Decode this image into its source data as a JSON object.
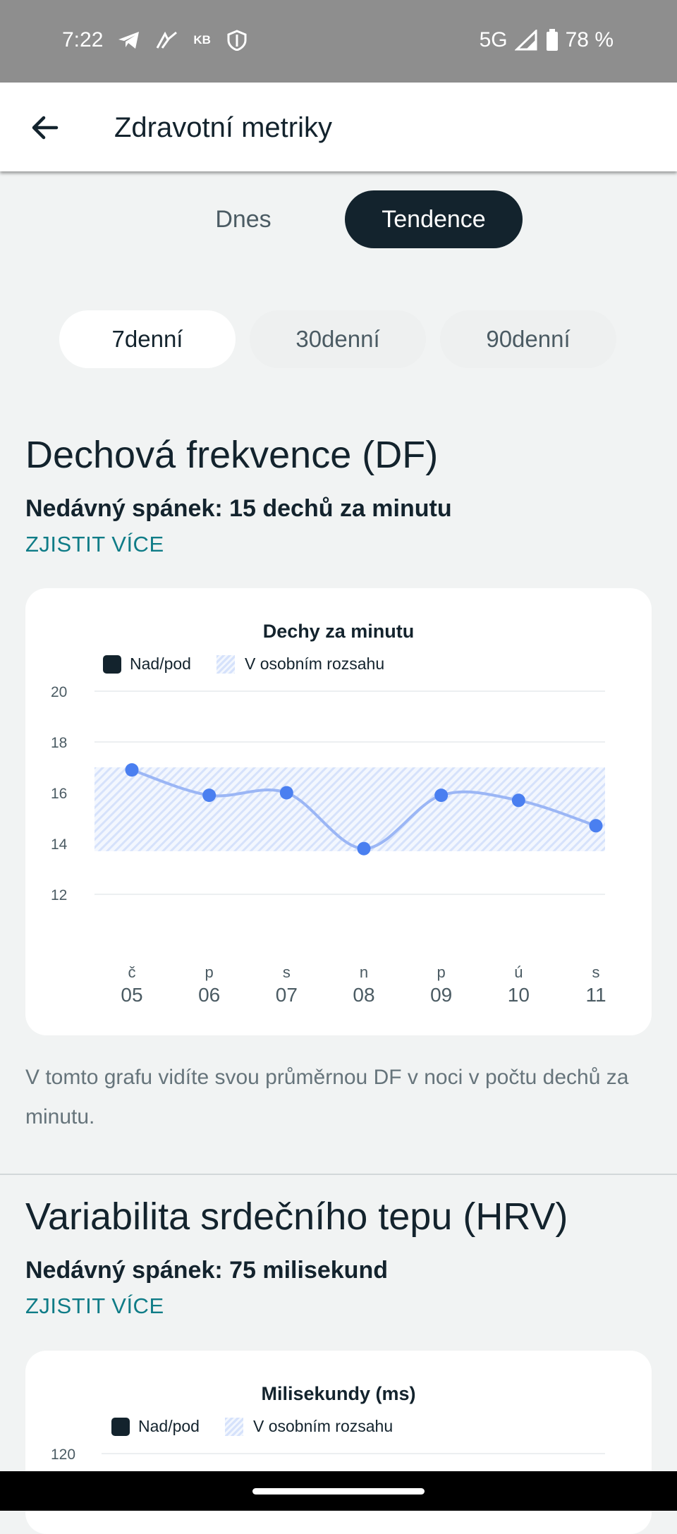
{
  "status_bar": {
    "time": "7:22",
    "network": "5G",
    "battery": "78 %"
  },
  "app_bar": {
    "title": "Zdravotní metriky"
  },
  "view_tabs": [
    {
      "label": "Dnes",
      "active": false
    },
    {
      "label": "Tendence",
      "active": true
    }
  ],
  "range_tabs": [
    {
      "label": "7denní",
      "active": true
    },
    {
      "label": "30denní",
      "active": false
    },
    {
      "label": "90denní",
      "active": false
    }
  ],
  "df_section": {
    "title": "Dechová frekvence (DF)",
    "recent": "Nedávný spánek: 15 dechů za minutu",
    "more_link": "ZJISTIT VÍCE",
    "description": "V tomto grafu vidíte svou průměrnou DF v noci v počtu dechů za minutu."
  },
  "hrv_section": {
    "title": "Variabilita srdečního tepu (HRV)",
    "recent": "Nedávný spánek: 75 milisekund",
    "more_link": "ZJISTIT VÍCE"
  },
  "legend": {
    "above_below": "Nad/pod",
    "in_range": "V osobním rozsahu"
  },
  "chart_data": [
    {
      "type": "line",
      "title": "Dechy za minutu",
      "categories": [
        "05",
        "06",
        "07",
        "08",
        "09",
        "10",
        "11"
      ],
      "day_letters": [
        "č",
        "p",
        "s",
        "n",
        "p",
        "ú",
        "s"
      ],
      "series": [
        {
          "values": [
            16.9,
            15.9,
            16.0,
            13.8,
            15.9,
            15.7,
            14.7
          ],
          "color": "#4a7ff0"
        }
      ],
      "personal_range": [
        13.7,
        17.0
      ],
      "ylim": [
        12,
        20
      ],
      "yticks": [
        20,
        18,
        16,
        14,
        12
      ],
      "legend_position": "top-left",
      "grid": true
    },
    {
      "type": "line",
      "title": "Milisekundy (ms)",
      "yticks": [
        120
      ],
      "legend_position": "top-left",
      "grid": true
    }
  ],
  "colors": {
    "accent_dark": "#13232d",
    "link": "#0f7c87",
    "series": "#4a7ff0",
    "range_hatch": "#d6e2fb"
  }
}
